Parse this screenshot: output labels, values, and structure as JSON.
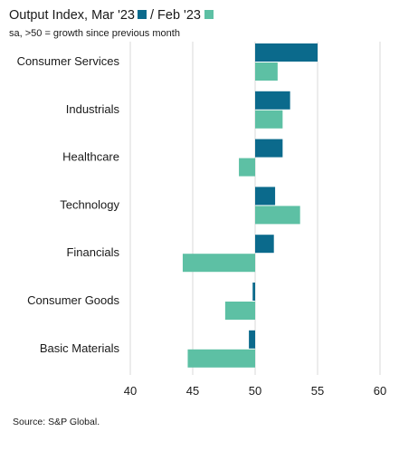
{
  "header": {
    "title_part1": "Output Index, Mar '23",
    "title_part2": "/ Feb '23",
    "subtitle": "sa, >50 = growth since previous month"
  },
  "colors": {
    "mar": "#0b6a8c",
    "feb": "#5dc0a4",
    "grid": "#d9d9d9"
  },
  "footer": {
    "source": "Source: S&P Global."
  },
  "chart_data": {
    "type": "bar",
    "orientation": "horizontal",
    "baseline": 50,
    "categories": [
      "Consumer Services",
      "Industrials",
      "Healthcare",
      "Technology",
      "Financials",
      "Consumer Goods",
      "Basic Materials"
    ],
    "series": [
      {
        "name": "Mar '23",
        "values": [
          55.0,
          52.8,
          52.2,
          51.6,
          51.5,
          49.8,
          49.5
        ]
      },
      {
        "name": "Feb '23",
        "values": [
          51.8,
          52.2,
          48.7,
          53.6,
          44.2,
          47.6,
          44.6
        ]
      }
    ],
    "xlim": [
      40,
      60
    ],
    "xticks": [
      40,
      45,
      50,
      55,
      60
    ],
    "grid": true,
    "legend": "in title"
  }
}
